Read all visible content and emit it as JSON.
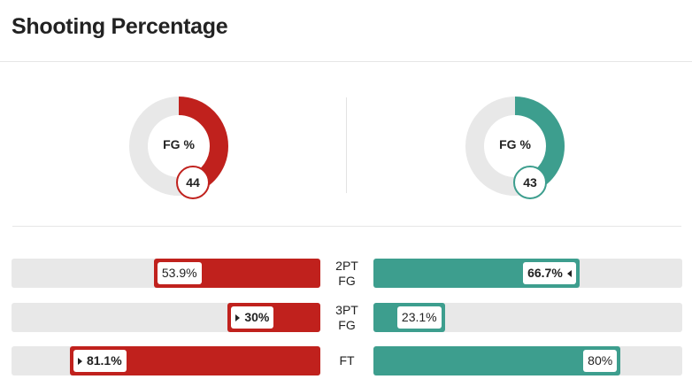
{
  "title": "Shooting Percentage",
  "colors": {
    "home": "#c0211d",
    "away": "#3d9e8e",
    "track": "#e8e8e8"
  },
  "fg": {
    "label": "FG %",
    "home": {
      "value": 44,
      "display": "44"
    },
    "away": {
      "value": 43,
      "display": "43"
    }
  },
  "stats": [
    {
      "label_line1": "2PT",
      "label_line2": "FG",
      "home": {
        "value": 53.9,
        "display": "53.9%",
        "leader": false
      },
      "away": {
        "value": 66.7,
        "display": "66.7%",
        "leader": true
      }
    },
    {
      "label_line1": "3PT",
      "label_line2": "FG",
      "home": {
        "value": 30,
        "display": "30%",
        "leader": true
      },
      "away": {
        "value": 23.1,
        "display": "23.1%",
        "leader": false
      }
    },
    {
      "label_line1": "FT",
      "label_line2": "",
      "home": {
        "value": 81.1,
        "display": "81.1%",
        "leader": true
      },
      "away": {
        "value": 80,
        "display": "80%",
        "leader": false
      }
    }
  ]
}
